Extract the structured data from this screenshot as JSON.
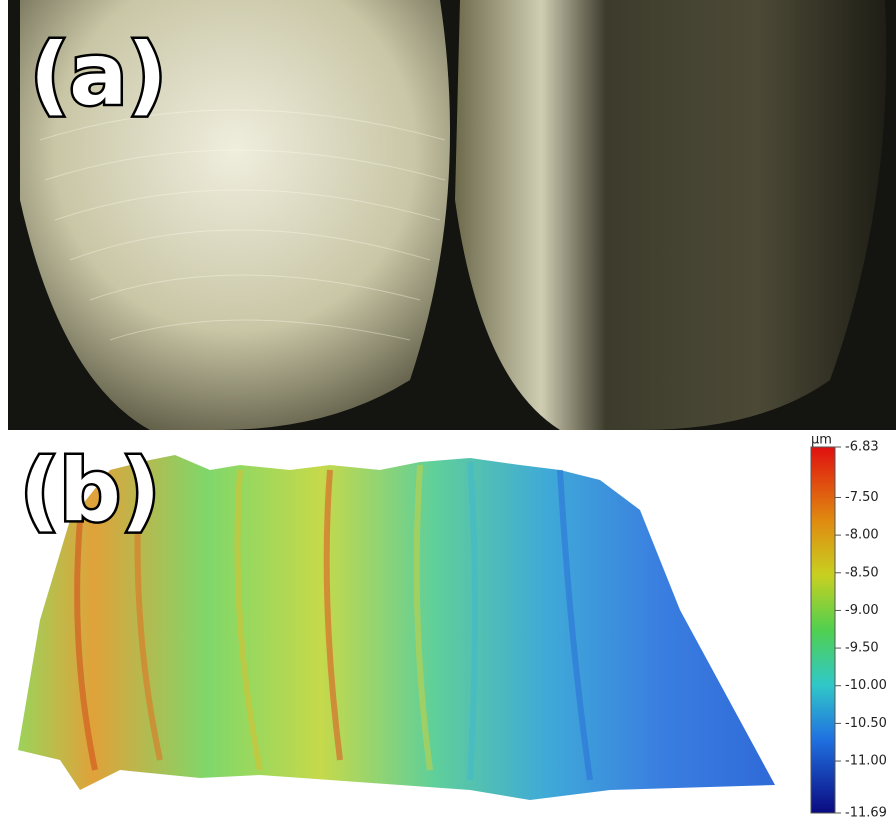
{
  "panels": {
    "a": {
      "label": "(a)"
    },
    "b": {
      "label": "(b)"
    }
  },
  "colorbar": {
    "unit": "µm",
    "lim": [
      -11.69,
      -6.83
    ],
    "ticks": [
      -6.83,
      {
        "value": -7.5,
        "label": "-7.50"
      },
      {
        "value": -8,
        "label": "-8.00"
      },
      {
        "value": -8.5,
        "label": "-8.50"
      },
      {
        "value": -9,
        "label": "-9.00"
      },
      {
        "value": -9.5,
        "label": "-9.50"
      },
      {
        "value": -10,
        "label": "-10.00"
      },
      {
        "value": -10.5,
        "label": "-10.50"
      },
      {
        "value": -11,
        "label": "-11.00"
      },
      -11.69
    ]
  }
}
